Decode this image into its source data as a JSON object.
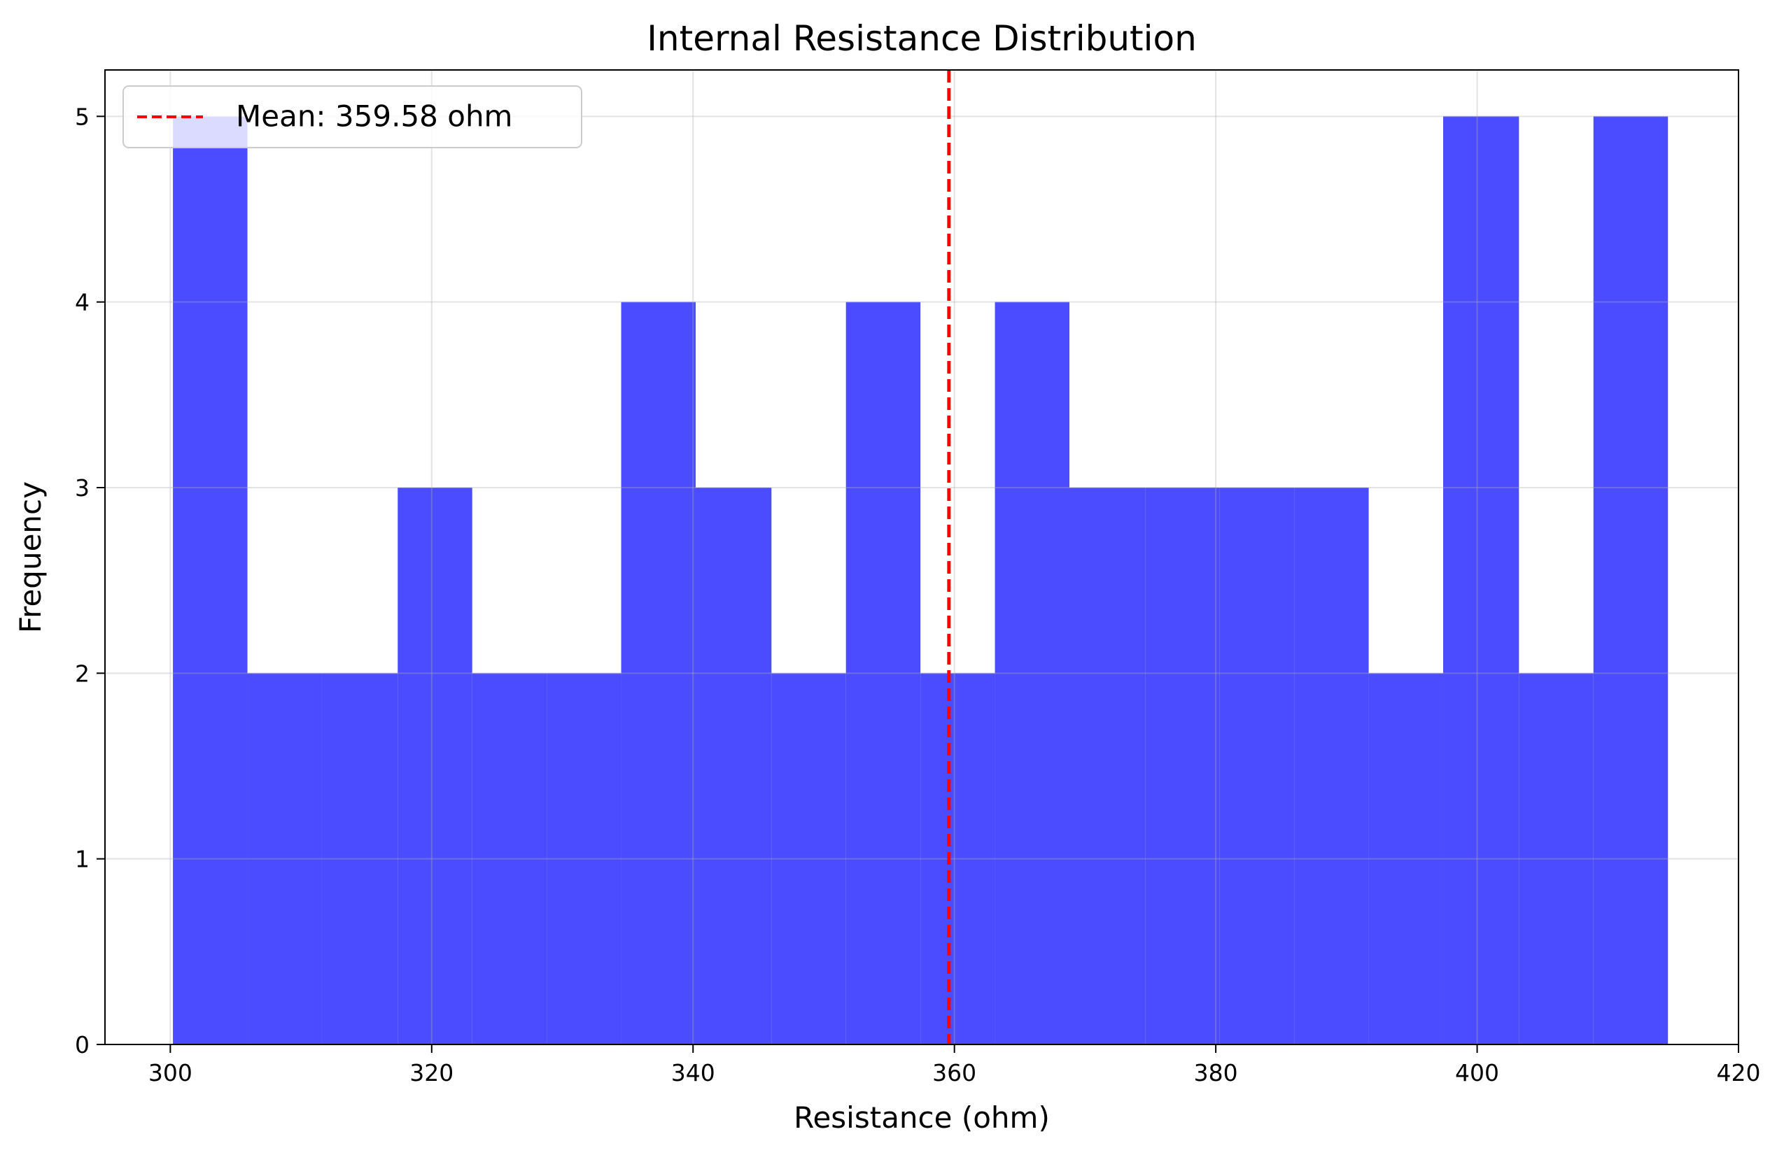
{
  "chart_data": {
    "type": "bar",
    "title": "Internal Resistance Distribution",
    "xlabel": "Resistance (ohm)",
    "ylabel": "Frequency",
    "xlim": [
      295,
      420
    ],
    "ylim": [
      0,
      5.25
    ],
    "xticks": [
      300,
      320,
      340,
      360,
      380,
      400,
      420
    ],
    "yticks": [
      0,
      1,
      2,
      3,
      4,
      5
    ],
    "bin_edges": [
      300.2,
      305.9,
      311.6,
      317.4,
      323.1,
      328.8,
      334.5,
      340.2,
      346.0,
      351.7,
      357.4,
      363.1,
      368.8,
      374.6,
      380.3,
      386.0,
      391.7,
      397.4,
      403.2,
      408.9,
      414.6
    ],
    "values": [
      5,
      2,
      2,
      3,
      2,
      2,
      4,
      3,
      2,
      4,
      2,
      4,
      3,
      3,
      3,
      3,
      2,
      5,
      2,
      5
    ],
    "bar_color": "#4b4bff",
    "mean": 359.58,
    "mean_line_color": "#ff0000",
    "legend": {
      "label": "Mean: 359.58 ohm",
      "placement": "top-left"
    },
    "grid": true
  }
}
